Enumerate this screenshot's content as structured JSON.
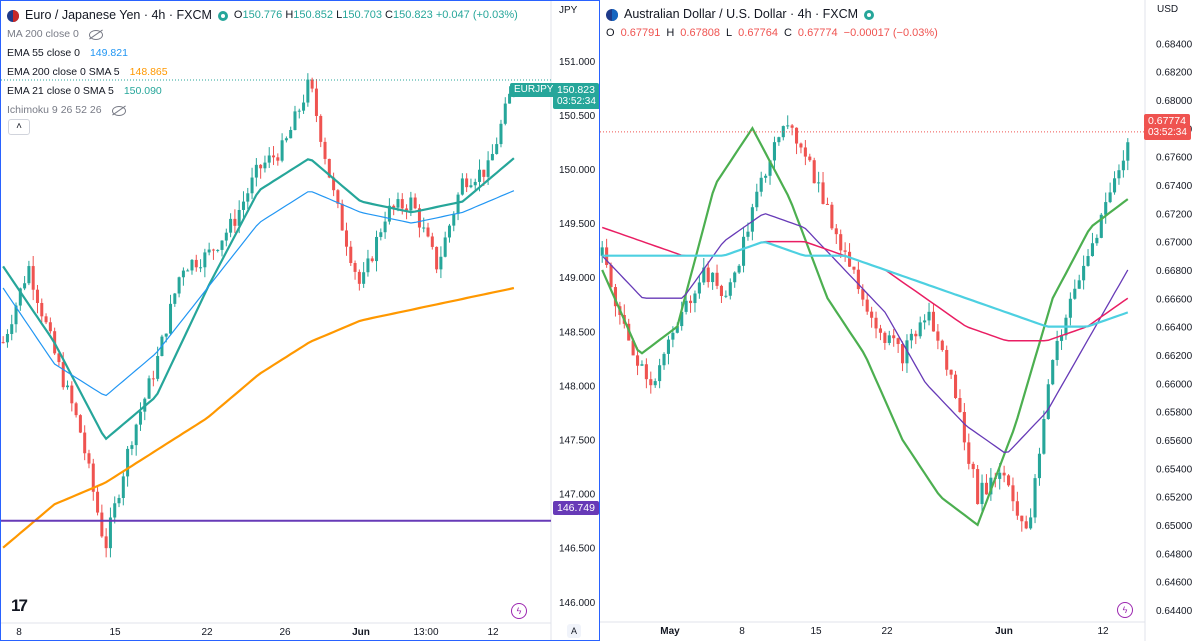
{
  "left": {
    "title": "Euro / Japanese Yen · 4h · FXCM",
    "ohlc": {
      "o": "O",
      "o_val": "150.776",
      "h": "H",
      "h_val": "150.852",
      "l": "L",
      "l_val": "150.703",
      "c": "C",
      "c_val": "150.823",
      "chg": "+0.047 (+0.03%)"
    },
    "indicators": [
      {
        "label": "MA 200 close 0",
        "value": "",
        "color": "#787b86",
        "hidden": true
      },
      {
        "label": "EMA 55 close 0",
        "value": "149.821",
        "color": "#2196f3"
      },
      {
        "label": "EMA 200 close 0 SMA 5",
        "value": "148.865",
        "color": "#ff9800"
      },
      {
        "label": "EMA 21 close 0 SMA 5",
        "value": "150.090",
        "color": "#26a69a"
      },
      {
        "label": "Ichimoku 9 26 52 26",
        "value": "",
        "color": "#787b86",
        "hidden": true
      }
    ],
    "collapse_icon": "chevron-up-icon",
    "currency": "JPY",
    "symbol_tag": "EURJPY",
    "price_tag": "150.823",
    "countdown": "03:52:34",
    "hline_tag": "146.749",
    "time_icon": "A",
    "logo": "17",
    "colors": {
      "up": "#26a69a",
      "down": "#ef5350",
      "ema21": "#26a69a",
      "ema55": "#2196f3",
      "ema200": "#ff9800",
      "hline": "#673ab7"
    }
  },
  "right": {
    "title": "Australian Dollar / U.S. Dollar · 4h · FXCM",
    "ohlc": {
      "o": "O",
      "o_val": "0.67791",
      "h": "H",
      "h_val": "0.67808",
      "l": "L",
      "l_val": "0.67764",
      "c": "C",
      "c_val": "0.67774",
      "chg": "−0.00017 (−0.03%)"
    },
    "currency": "USD",
    "price_tag": "0.67774",
    "countdown": "03:52:34",
    "colors": {
      "up": "#26a69a",
      "down": "#ef5350",
      "green": "#4caf50",
      "purple": "#673ab7",
      "red": "#e91e63",
      "cyan": "#4dd0e1"
    }
  },
  "chart_data": [
    {
      "type": "candlestick",
      "symbol": "EURJPY",
      "timeframe": "4h",
      "x_ticks": [
        "8",
        "15",
        "22",
        "26",
        "Jun",
        "13:00",
        "12"
      ],
      "y_ticks": [
        "146.000",
        "146.500",
        "147.000",
        "147.500",
        "148.000",
        "148.500",
        "149.000",
        "149.500",
        "150.000",
        "150.500",
        "151.000"
      ],
      "ylim": [
        145.85,
        151.35
      ],
      "horizontal_line": 146.749,
      "last_price": 150.823,
      "series": [
        {
          "name": "EMA 21",
          "values_close_approx": [
            149.1,
            148.4,
            147.5,
            147.9,
            148.9,
            149.8,
            150.1,
            149.7,
            149.6,
            149.7,
            150.1
          ]
        },
        {
          "name": "EMA 55",
          "values_close_approx": [
            148.9,
            148.2,
            147.9,
            148.3,
            148.9,
            149.5,
            149.8,
            149.6,
            149.5,
            149.6,
            149.8
          ]
        },
        {
          "name": "EMA 200",
          "values_close_approx": [
            146.5,
            146.9,
            147.1,
            147.4,
            147.7,
            148.1,
            148.4,
            148.6,
            148.7,
            148.8,
            148.9
          ]
        }
      ],
      "candles_close_approx": [
        148.4,
        149.1,
        148.3,
        147.6,
        146.5,
        147.5,
        148.2,
        149.1,
        149.2,
        149.5,
        150.0,
        150.2,
        150.8,
        149.7,
        148.9,
        149.6,
        149.7,
        149.1,
        149.9,
        150.0,
        150.8
      ]
    },
    {
      "type": "candlestick",
      "symbol": "AUDUSD",
      "timeframe": "4h",
      "x_ticks": [
        "May",
        "8",
        "15",
        "22",
        "Jun",
        "12"
      ],
      "y_ticks": [
        "0.64400",
        "0.64600",
        "0.64800",
        "0.65000",
        "0.65200",
        "0.65400",
        "0.65600",
        "0.65800",
        "0.66000",
        "0.66200",
        "0.66400",
        "0.66600",
        "0.66800",
        "0.67000",
        "0.67200",
        "0.67400",
        "0.67600",
        "0.67800",
        "0.68000",
        "0.68200",
        "0.68400"
      ],
      "ylim": [
        0.6435,
        0.6855
      ],
      "last_price": 0.67774,
      "candles_close_approx": [
        0.669,
        0.663,
        0.66,
        0.664,
        0.668,
        0.666,
        0.672,
        0.678,
        0.677,
        0.672,
        0.668,
        0.664,
        0.662,
        0.665,
        0.66,
        0.652,
        0.654,
        0.649,
        0.662,
        0.667,
        0.672,
        0.677
      ]
    }
  ]
}
